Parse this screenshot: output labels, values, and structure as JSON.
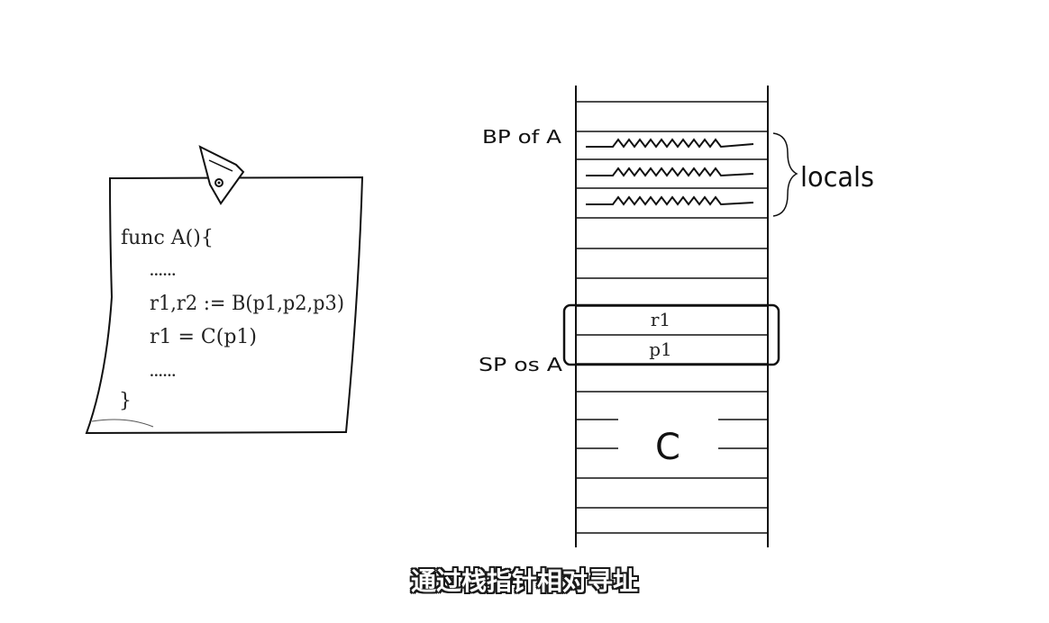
{
  "note": {
    "code_lines": [
      "func A(){",
      "......",
      "r1,r2 := B(p1,p2,p3)",
      "r1 = C(p1)",
      "......",
      "}"
    ]
  },
  "stack": {
    "bp_label": "BP of A",
    "sp_label": "SP os A",
    "locals_label": "locals",
    "slot_r1": "r1",
    "slot_p1": "p1",
    "frame_c_label": "C"
  },
  "subtitle": "通过栈指针相对寻址"
}
